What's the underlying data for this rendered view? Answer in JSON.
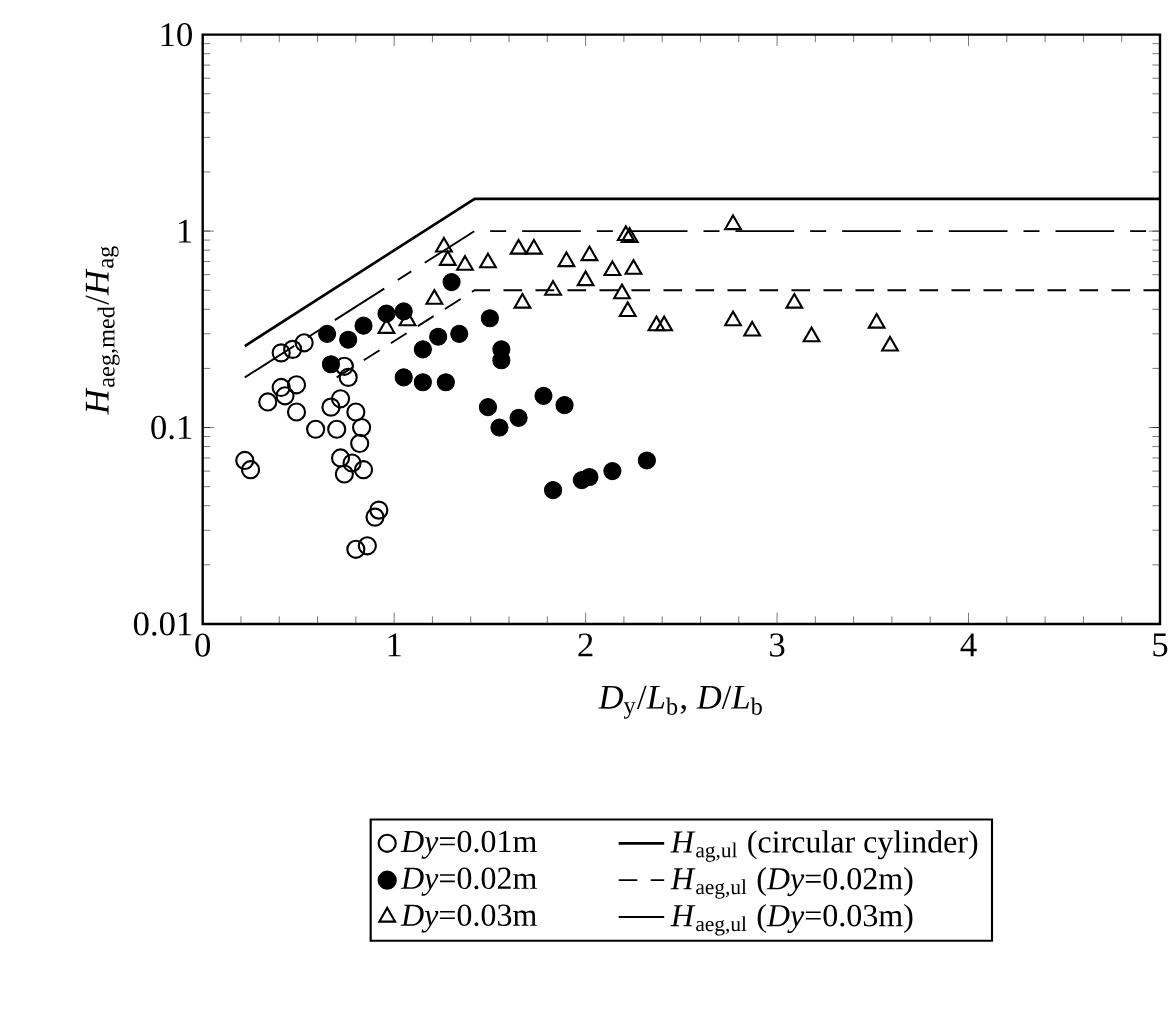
{
  "chart_data": {
    "type": "scatter",
    "xlabel": "*D*$_{y}$/*L*$_{b}$, *D*/*L*$_{b}$",
    "ylabel": "*H*$_{aeg,med}$/*H*$_{ag}$",
    "log": "y",
    "xlim": [
      0,
      5
    ],
    "ylim": [
      0.01,
      10
    ],
    "xticks": [
      0,
      1,
      2,
      3,
      4,
      5
    ],
    "yticks": [
      0.01,
      0.1,
      1,
      10
    ],
    "grid": false,
    "legend": "bottom",
    "series": [
      {
        "name": "*Dy*=0.01m",
        "marker": "circle",
        "color": "#000000",
        "x": [
          0.22,
          0.25,
          0.34,
          0.41,
          0.47,
          0.53,
          0.41,
          0.49,
          0.43,
          0.49,
          0.59,
          0.67,
          0.7,
          0.74,
          0.76,
          0.72,
          0.8,
          0.83,
          0.72,
          0.74,
          0.78,
          0.84,
          0.82,
          0.92,
          0.9,
          0.8,
          0.86
        ],
        "values": [
          0.068,
          0.061,
          0.135,
          0.24,
          0.25,
          0.27,
          0.16,
          0.165,
          0.145,
          0.12,
          0.098,
          0.127,
          0.098,
          0.205,
          0.18,
          0.14,
          0.12,
          0.1,
          0.07,
          0.058,
          0.066,
          0.061,
          0.083,
          0.038,
          0.035,
          0.024,
          0.025
        ]
      },
      {
        "name": "*Dy*=0.02m",
        "marker": "filled circle",
        "color": "#000000",
        "x": [
          0.65,
          0.67,
          0.76,
          0.84,
          0.96,
          1.05,
          1.3,
          1.05,
          1.15,
          1.27,
          1.15,
          1.23,
          1.34,
          1.5,
          1.56,
          1.56,
          1.49,
          1.55,
          1.65,
          1.78,
          1.89,
          1.83,
          1.98,
          2.02,
          2.14,
          2.32
        ],
        "values": [
          0.3,
          0.21,
          0.28,
          0.33,
          0.38,
          0.39,
          0.55,
          0.18,
          0.17,
          0.17,
          0.25,
          0.29,
          0.3,
          0.36,
          0.25,
          0.22,
          0.127,
          0.1,
          0.112,
          0.145,
          0.13,
          0.048,
          0.054,
          0.056,
          0.06,
          0.068
        ]
      },
      {
        "name": "*Dy*=0.03m",
        "marker": "triangle",
        "color": "#000000",
        "x": [
          1.26,
          1.28,
          1.37,
          1.49,
          1.65,
          1.73,
          1.9,
          2.02,
          2.0,
          2.21,
          2.23,
          2.77,
          2.14,
          2.25,
          2.19,
          2.22,
          2.37,
          2.41,
          2.77,
          2.87,
          3.09,
          3.18,
          3.52,
          3.59,
          1.21,
          1.67,
          1.83,
          0.96,
          1.07
        ],
        "values": [
          0.83,
          0.71,
          0.67,
          0.69,
          0.81,
          0.81,
          0.7,
          0.75,
          0.56,
          0.95,
          0.93,
          1.08,
          0.63,
          0.64,
          0.48,
          0.39,
          0.33,
          0.33,
          0.35,
          0.31,
          0.43,
          0.29,
          0.34,
          0.26,
          0.45,
          0.43,
          0.5,
          0.32,
          0.35
        ]
      },
      {
        "name": "*H*$_{ag,ul}$ (circular cylinder)",
        "type": "line",
        "line_style": "solid",
        "marker": "none",
        "color": "#000000",
        "x": [
          0.22,
          1.42,
          5
        ],
        "values": [
          0.26,
          1.46,
          1.46
        ]
      },
      {
        "name": "*H*$_{aeg,ul}$ (*Dy*=0.02m)",
        "type": "line",
        "line_style": "dashed",
        "marker": "none",
        "color": "#000000",
        "x": [
          0.7,
          1.42,
          5
        ],
        "values": [
          0.18,
          0.5,
          0.5
        ]
      },
      {
        "name": "*H*$_{aeg,ul}$ (*Dy*=0.03m)",
        "type": "line",
        "line_style": "long dashed",
        "marker": "none",
        "color": "#000000",
        "x": [
          0.22,
          1.42,
          5
        ],
        "values": [
          0.18,
          1.0,
          1.0
        ]
      }
    ]
  }
}
